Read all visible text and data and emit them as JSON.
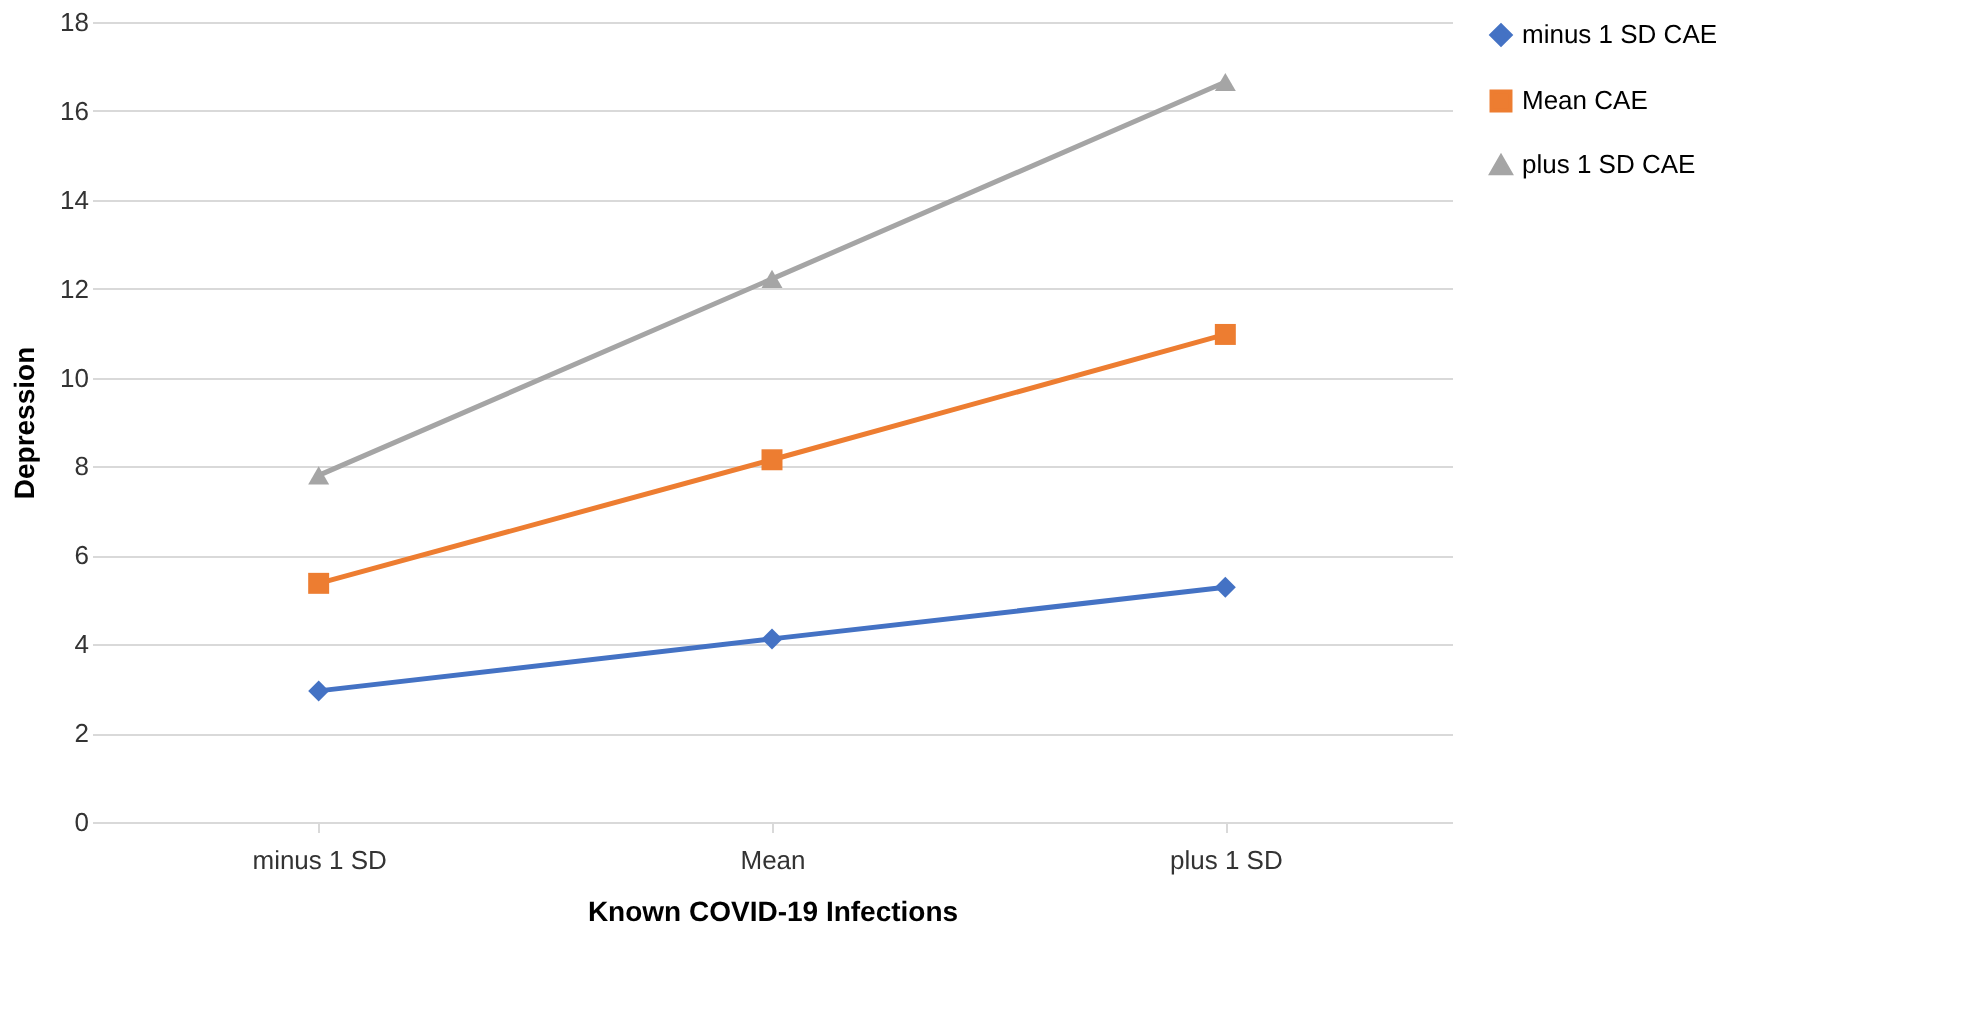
{
  "chart_data": {
    "type": "line",
    "xlabel": "Known COVID-19 Infections",
    "ylabel": "Depression",
    "categories": [
      "minus 1 SD",
      "Mean",
      "plus 1 SD"
    ],
    "series": [
      {
        "name": "minus 1 SD CAE",
        "color": "#4472c4",
        "marker": "diamond",
        "values": [
          2.95,
          4.12,
          5.28
        ]
      },
      {
        "name": "Mean CAE",
        "color": "#ed7d31",
        "marker": "square",
        "values": [
          5.37,
          8.15,
          10.97
        ]
      },
      {
        "name": "plus 1 SD CAE",
        "color": "#a5a5a5",
        "marker": "triangle",
        "values": [
          7.8,
          12.22,
          16.65
        ]
      }
    ],
    "ylim": [
      0,
      18
    ],
    "yticks": [
      0,
      2,
      4,
      6,
      8,
      10,
      12,
      14,
      16,
      18
    ],
    "grid": "y",
    "legend": "right",
    "line_style": "solid"
  }
}
